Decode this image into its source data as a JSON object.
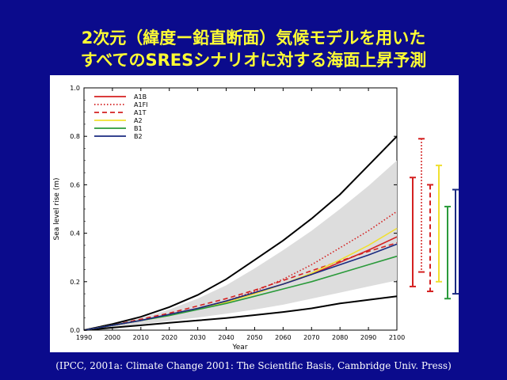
{
  "slide": {
    "title_line1": "2次元（緯度ー鉛直断面）気候モデルを用いた",
    "title_line2": "すべてのSRESシナリオに対する海面上昇予測",
    "caption": "(IPCC, 2001a: Climate Change 2001: The Scientific Basis, Cambridge Univ. Press)"
  },
  "chart_data": {
    "type": "line",
    "xlabel": "Year",
    "ylabel": "Sea level rise (m)",
    "xlim": [
      1990,
      2100
    ],
    "ylim": [
      0,
      1.0
    ],
    "x_ticks": [
      1990,
      2000,
      2010,
      2020,
      2030,
      2040,
      2050,
      2060,
      2070,
      2080,
      2090,
      2100
    ],
    "y_ticks": [
      0.0,
      0.2,
      0.4,
      0.6,
      0.8,
      1.0
    ],
    "y_tick_labels": [
      "0.0",
      "0.2",
      "0.4",
      "0.6",
      "0.8",
      "1.0"
    ],
    "legend_position": "top-left",
    "series": [
      {
        "name": "A1B",
        "color": "#d42020",
        "dash": "solid",
        "x": [
          1990,
          2000,
          2010,
          2020,
          2030,
          2040,
          2050,
          2060,
          2070,
          2080,
          2090,
          2100
        ],
        "y": [
          0.0,
          0.02,
          0.04,
          0.065,
          0.09,
          0.12,
          0.155,
          0.19,
          0.23,
          0.28,
          0.33,
          0.385
        ]
      },
      {
        "name": "A1FI",
        "color": "#d42020",
        "dash": "dotted",
        "x": [
          1990,
          2000,
          2010,
          2020,
          2030,
          2040,
          2050,
          2060,
          2070,
          2080,
          2090,
          2100
        ],
        "y": [
          0.0,
          0.02,
          0.04,
          0.065,
          0.09,
          0.12,
          0.16,
          0.21,
          0.27,
          0.34,
          0.41,
          0.49
        ]
      },
      {
        "name": "A1T",
        "color": "#d42020",
        "dash": "dashed",
        "x": [
          1990,
          2000,
          2010,
          2020,
          2030,
          2040,
          2050,
          2060,
          2070,
          2080,
          2090,
          2100
        ],
        "y": [
          0.0,
          0.02,
          0.045,
          0.07,
          0.1,
          0.13,
          0.165,
          0.205,
          0.245,
          0.285,
          0.325,
          0.36
        ]
      },
      {
        "name": "A2",
        "color": "#f0e030",
        "dash": "solid",
        "x": [
          1990,
          2000,
          2010,
          2020,
          2030,
          2040,
          2050,
          2060,
          2070,
          2080,
          2090,
          2100
        ],
        "y": [
          0.0,
          0.02,
          0.04,
          0.06,
          0.09,
          0.115,
          0.15,
          0.19,
          0.235,
          0.29,
          0.35,
          0.42
        ]
      },
      {
        "name": "B1",
        "color": "#2a9a3a",
        "dash": "solid",
        "x": [
          1990,
          2000,
          2010,
          2020,
          2030,
          2040,
          2050,
          2060,
          2070,
          2080,
          2090,
          2100
        ],
        "y": [
          0.0,
          0.02,
          0.04,
          0.06,
          0.085,
          0.11,
          0.14,
          0.17,
          0.2,
          0.235,
          0.27,
          0.305
        ]
      },
      {
        "name": "B2",
        "color": "#1a2a80",
        "dash": "solid",
        "x": [
          1990,
          2000,
          2010,
          2020,
          2030,
          2040,
          2050,
          2060,
          2070,
          2080,
          2090,
          2100
        ],
        "y": [
          0.0,
          0.02,
          0.04,
          0.065,
          0.09,
          0.12,
          0.155,
          0.19,
          0.23,
          0.27,
          0.31,
          0.355
        ]
      }
    ],
    "envelope_upper": {
      "color": "#000000",
      "x": [
        1990,
        2000,
        2010,
        2020,
        2030,
        2040,
        2050,
        2060,
        2070,
        2080,
        2090,
        2100
      ],
      "y": [
        0.0,
        0.025,
        0.055,
        0.095,
        0.145,
        0.21,
        0.29,
        0.37,
        0.46,
        0.56,
        0.68,
        0.8
      ]
    },
    "envelope_lower": {
      "color": "#000000",
      "x": [
        1990,
        2000,
        2010,
        2020,
        2030,
        2040,
        2050,
        2060,
        2070,
        2080,
        2090,
        2100
      ],
      "y": [
        0.0,
        0.01,
        0.02,
        0.03,
        0.04,
        0.05,
        0.062,
        0.075,
        0.09,
        0.11,
        0.125,
        0.14
      ]
    },
    "shaded_band": {
      "color": "#dddddd",
      "x": [
        1990,
        2000,
        2010,
        2020,
        2030,
        2040,
        2050,
        2060,
        2070,
        2080,
        2090,
        2100
      ],
      "upper": [
        0.0,
        0.022,
        0.05,
        0.085,
        0.13,
        0.185,
        0.255,
        0.33,
        0.41,
        0.5,
        0.595,
        0.7
      ],
      "lower": [
        0.0,
        0.012,
        0.025,
        0.038,
        0.052,
        0.068,
        0.085,
        0.105,
        0.13,
        0.155,
        0.18,
        0.205
      ]
    },
    "range_bars": [
      {
        "name": "A1B",
        "color": "#d42020",
        "dash": "solid",
        "low": 0.18,
        "high": 0.63
      },
      {
        "name": "A1FI",
        "color": "#d42020",
        "dash": "dotted",
        "low": 0.24,
        "high": 0.79
      },
      {
        "name": "A1T",
        "color": "#d42020",
        "dash": "dashed",
        "low": 0.16,
        "high": 0.6
      },
      {
        "name": "A2",
        "color": "#f0e030",
        "dash": "solid",
        "low": 0.2,
        "high": 0.68
      },
      {
        "name": "B1",
        "color": "#2a9a3a",
        "dash": "solid",
        "low": 0.13,
        "high": 0.51
      },
      {
        "name": "B2",
        "color": "#1a2a80",
        "dash": "solid",
        "low": 0.15,
        "high": 0.58
      }
    ]
  }
}
